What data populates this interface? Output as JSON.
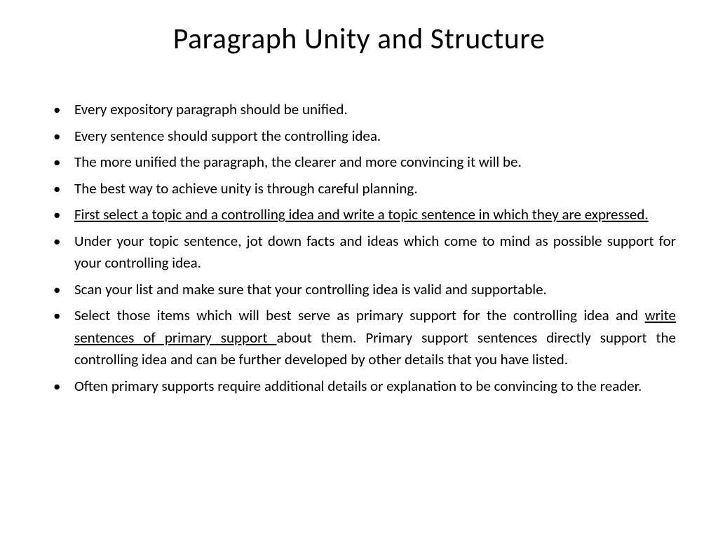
{
  "slide": {
    "title": "Paragraph Unity and Structure",
    "bullets": [
      {
        "text": "Every expository paragraph should be unified."
      },
      {
        "text": "Every sentence should support the controlling idea."
      },
      {
        "text": "The more unified the paragraph, the clearer and more convincing it will be."
      },
      {
        "text": "The best way to achieve unity is through careful planning."
      },
      {
        "underlined": "First select a topic and a controlling idea and write a topic sentence in which they are expressed."
      },
      {
        "text": "Under your topic sentence, jot down facts and ideas which come to mind as possible support for your controlling idea."
      },
      {
        "text": "Scan your list and make sure that your controlling idea is valid and supportable."
      },
      {
        "pre": "Select those items which will best serve as primary support for the controlling idea and ",
        "underlined_mid": "write sentences of primary support ",
        "post": "about them. Primary support sentences directly support the controlling idea and can be further developed by other details that you have listed."
      },
      {
        "text": "Often primary supports require additional details or explanation to be convincing to the reader."
      }
    ],
    "background_color": "#ffffff",
    "text_color": "#000000",
    "title_fontsize": 42,
    "body_fontsize": 21
  }
}
